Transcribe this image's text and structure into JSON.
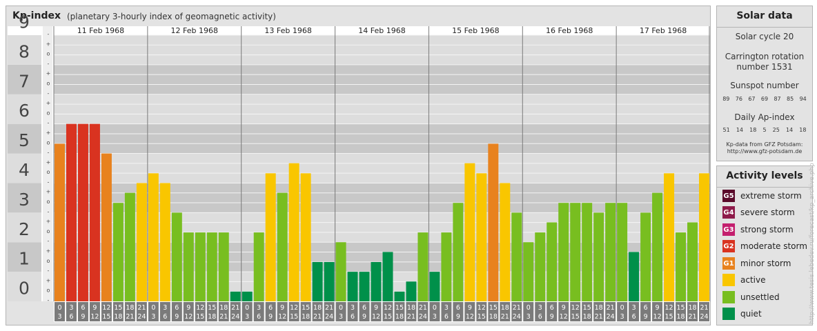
{
  "header": {
    "title": "Kp-index",
    "subtitle": "(planetary 3-hourly index of geomagnetic activity)"
  },
  "chart_data": {
    "type": "bar",
    "y_ticks": [
      "0",
      "1",
      "2",
      "3",
      "4",
      "5",
      "6",
      "7",
      "8",
      "9"
    ],
    "minor_marks": [
      "+",
      "o",
      "-"
    ],
    "ylim": [
      0,
      9
    ],
    "days": [
      {
        "label": "11 Feb 1968",
        "values": [
          5.33,
          6.0,
          6.0,
          6.0,
          5.0,
          3.33,
          3.67,
          4.0
        ]
      },
      {
        "label": "12 Feb 1968",
        "values": [
          4.33,
          4.0,
          3.0,
          2.33,
          2.33,
          2.33,
          2.33,
          0.33
        ]
      },
      {
        "label": "13 Feb 1968",
        "values": [
          0.33,
          2.33,
          4.33,
          3.67,
          4.67,
          4.33,
          1.33,
          1.33
        ]
      },
      {
        "label": "14 Feb 1968",
        "values": [
          2.0,
          1.0,
          1.0,
          1.33,
          1.67,
          0.33,
          0.67,
          2.33
        ]
      },
      {
        "label": "15 Feb 1968",
        "values": [
          1.0,
          2.33,
          3.33,
          4.67,
          4.33,
          5.33,
          4.0,
          3.0
        ]
      },
      {
        "label": "16 Feb 1968",
        "values": [
          2.0,
          2.33,
          2.67,
          3.33,
          3.33,
          3.33,
          3.0,
          3.33
        ]
      },
      {
        "label": "17 Feb 1968",
        "values": [
          3.33,
          1.67,
          3.0,
          3.67,
          4.33,
          2.33,
          2.67,
          4.33
        ]
      }
    ],
    "interval_labels": [
      [
        "0",
        "3"
      ],
      [
        "3",
        "6"
      ],
      [
        "6",
        "9"
      ],
      [
        "9",
        "12"
      ],
      [
        "12",
        "15"
      ],
      [
        "15",
        "18"
      ],
      [
        "18",
        "21"
      ],
      [
        "21",
        "24"
      ]
    ]
  },
  "solar_data": {
    "title": "Solar data",
    "solar_cycle": "Solar cycle 20",
    "carrington_line1": "Carrington rotation",
    "carrington_line2": "number 1531",
    "sunspot_title": "Sunspot number",
    "sunspot_values": [
      "89",
      "76",
      "67",
      "69",
      "87",
      "85",
      "94"
    ],
    "ap_title": "Daily Ap-index",
    "ap_values": [
      "51",
      "14",
      "18",
      "5",
      "25",
      "14",
      "18"
    ],
    "source_line1": "Kp-data from GFZ Potsdam:",
    "source_line2": "http://www.gfz-potsdam.de"
  },
  "activity_levels": {
    "title": "Activity levels",
    "items": [
      {
        "badge": "G5",
        "label": "extreme storm",
        "color": "#5a0a2a"
      },
      {
        "badge": "G4",
        "label": "severe storm",
        "color": "#8e1b4a"
      },
      {
        "badge": "G3",
        "label": "strong storm",
        "color": "#c41f6e"
      },
      {
        "badge": "G2",
        "label": "moderate storm",
        "color": "#d93320"
      },
      {
        "badge": "G1",
        "label": "minor storm",
        "color": "#e8821e"
      },
      {
        "badge": "",
        "label": "active",
        "color": "#f9c600"
      },
      {
        "badge": "",
        "label": "unsettled",
        "color": "#78be20"
      },
      {
        "badge": "",
        "label": "quiet",
        "color": "#00904a"
      }
    ]
  },
  "watermark": "http://www.tesis.lebedev.ru/forecast/kp_archive.php"
}
